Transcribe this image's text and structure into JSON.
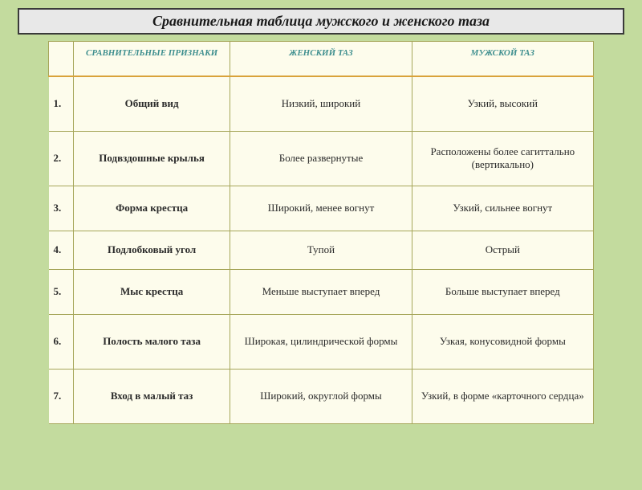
{
  "title": "Сравнительная таблица мужского и женского таза",
  "columns": {
    "feature": "СРАВНИТЕЛЬНЫЕ ПРИЗНАКИ",
    "female": "ЖЕНСКИЙ ТАЗ",
    "male": "МУЖСКОЙ ТАЗ"
  },
  "rows": [
    {
      "n": "1.",
      "feature": "Общий вид",
      "female": "Низкий, широкий",
      "male": "Узкий, высокий"
    },
    {
      "n": "2.",
      "feature": "Подвздошные крылья",
      "female": "Более развернутые",
      "male": "Расположены более сагиттально (вертикально)"
    },
    {
      "n": "3.",
      "feature": "Форма крестца",
      "female": "Широкий, менее вогнут",
      "male": "Узкий, сильнее вогнут"
    },
    {
      "n": "4.",
      "feature": "Подлобковый угол",
      "female": "Тупой",
      "male": "Острый"
    },
    {
      "n": "5.",
      "feature": "Мыс крестца",
      "female": "Меньше выступает вперед",
      "male": "Больше выступает вперед"
    },
    {
      "n": "6.",
      "feature": "Полость малого таза",
      "female": "Широкая, цилиндрической формы",
      "male": "Узкая, конусовидной формы"
    },
    {
      "n": "7.",
      "feature": "Вход в малый таз",
      "female": "Широкий, округлой формы",
      "male": "Узкий, в форме «карточного сердца»"
    }
  ],
  "colors": {
    "page_bg": "#c3db9e",
    "title_bg": "#e8e8e8",
    "title_border": "#3a3a3a",
    "cell_bg": "#fdfcec",
    "cell_border": "#a6a65a",
    "header_underline": "#d9a23a",
    "header_text": "#3f8f8f"
  }
}
